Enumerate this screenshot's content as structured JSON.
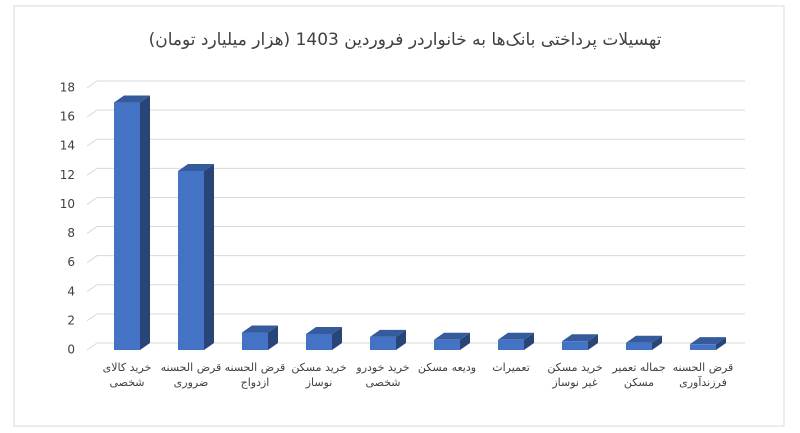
{
  "chart_data": {
    "type": "bar3d",
    "title": "تهسیلات پرداختی بانک‌ها به خانواردر فروردین 1403 (هزار میلیارد تومان)",
    "categories": [
      "خرید کالای شخصی",
      "قرض الحسنه ضروری",
      "قرض الحسنه ازدواج",
      "خرید مسکن نوساز",
      "خرید خودرو شخصی",
      "ودیعه مسکن",
      "تعمیرات",
      "خرید مسکن غیر نوساز",
      "جماله تعمیر مسکن",
      "قرض الحسنه فرزندآوری"
    ],
    "values": [
      17.0,
      12.3,
      1.2,
      1.1,
      0.9,
      0.7,
      0.7,
      0.6,
      0.5,
      0.4
    ],
    "color": "#4472c4",
    "ylim": [
      0,
      18
    ],
    "yticks": [
      0,
      2,
      4,
      6,
      8,
      10,
      12,
      14,
      16,
      18
    ],
    "grid": true
  }
}
